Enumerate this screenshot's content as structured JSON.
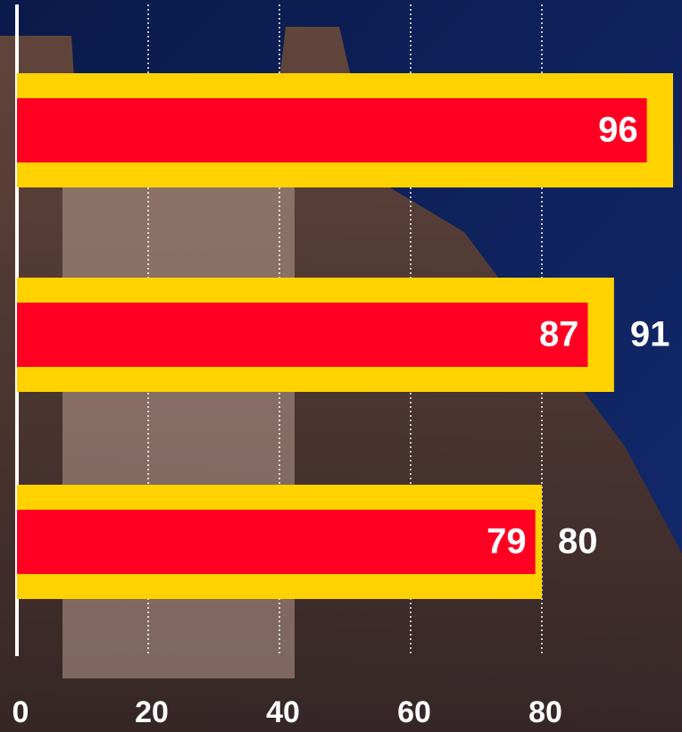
{
  "chart_data": {
    "type": "bar",
    "orientation": "horizontal",
    "categories": [
      null,
      null,
      null
    ],
    "series": [
      {
        "color": "#ffd200",
        "values": [
          100,
          91,
          80
        ],
        "value_labels": [
          null,
          "91",
          "80"
        ]
      },
      {
        "color": "#ff0022",
        "values": [
          96,
          87,
          79
        ]
      }
    ],
    "xlim": [
      0,
      100
    ],
    "xticks": [
      0,
      20,
      40,
      60,
      80
    ],
    "grid": true
  }
}
